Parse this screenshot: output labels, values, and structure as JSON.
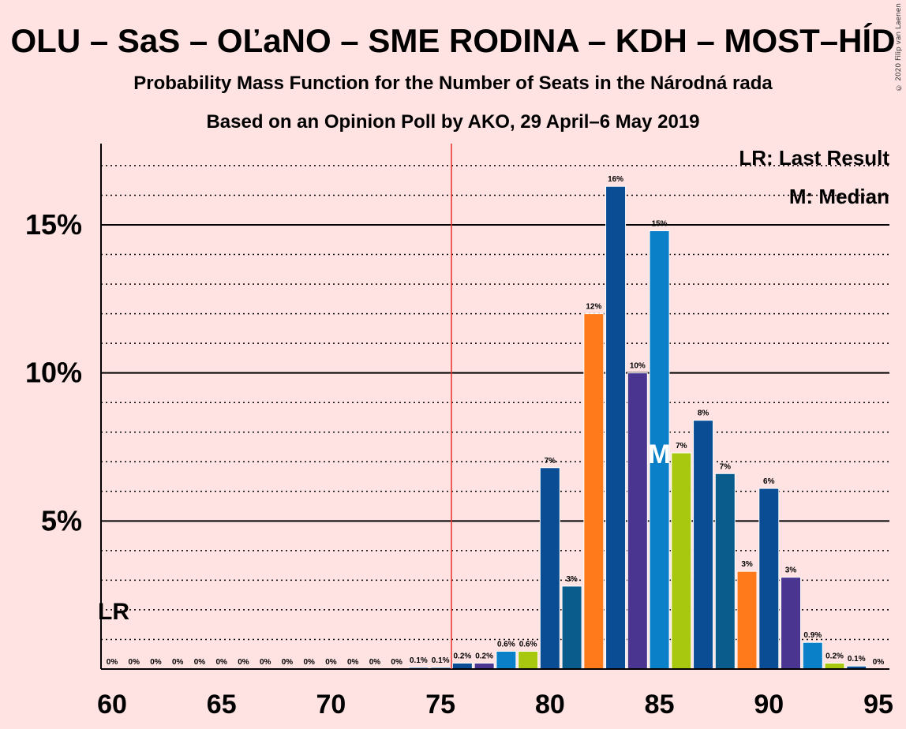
{
  "title": "OLU – SaS – OĽaNO – SME RODINA – KDH – MOST–HÍD",
  "subtitle1": "Probability Mass Function for the Number of Seats in the Národná rada",
  "subtitle2": "Based on an Opinion Poll by AKO, 29 April–6 May 2019",
  "copyright": "© 2020 Filip van Laenen",
  "legend": {
    "lr": "LR: Last Result",
    "m": "M: Median"
  },
  "lr_mark": "LR",
  "median_mark": "M",
  "chart_data": {
    "type": "bar",
    "x": [
      60,
      61,
      62,
      63,
      64,
      65,
      66,
      67,
      68,
      69,
      70,
      71,
      72,
      73,
      74,
      75,
      76,
      77,
      78,
      79,
      80,
      81,
      82,
      83,
      84,
      85,
      86,
      87,
      88,
      89,
      90,
      91,
      92,
      93,
      94,
      95
    ],
    "values": [
      0,
      0,
      0,
      0,
      0,
      0,
      0,
      0,
      0,
      0,
      0,
      0,
      0,
      0,
      0.05,
      0.05,
      0.2,
      0.2,
      0.6,
      0.6,
      6.8,
      2.8,
      12.0,
      16.3,
      10.0,
      14.8,
      7.3,
      8.4,
      6.6,
      3.3,
      6.1,
      3.1,
      0.9,
      0.2,
      0.1,
      0
    ],
    "labels": [
      "0%",
      "0%",
      "0%",
      "0%",
      "0%",
      "0%",
      "0%",
      "0%",
      "0%",
      "0%",
      "0%",
      "0%",
      "0%",
      "0%",
      "0.1%",
      "0.1%",
      "0.2%",
      "0.2%",
      "0.6%",
      "0.6%",
      "7%",
      "3%",
      "12%",
      "16%",
      "10%",
      "15%",
      "7%",
      "8%",
      "7%",
      "3%",
      "6%",
      "3%",
      "0.9%",
      "0.2%",
      "0.1%",
      "0%"
    ],
    "colors": [
      "#0A4D94",
      "#0A4D94",
      "#0A4D94",
      "#0A4D94",
      "#0A4D94",
      "#0A4D94",
      "#0A4D94",
      "#0A4D94",
      "#0A4D94",
      "#0A4D94",
      "#0A4D94",
      "#0A4D94",
      "#0A4D94",
      "#0A4D94",
      "#0A4D94",
      "#0A4D94",
      "#0A4D94",
      "#4A3590",
      "#0A80C8",
      "#A8C810",
      "#0A4D94",
      "#0A5C8C",
      "#FF7A1A",
      "#0A4D94",
      "#4A3590",
      "#0A80C8",
      "#A8C810",
      "#0A4D94",
      "#0A5C8C",
      "#FF7A1A",
      "#0A4D94",
      "#4A3590",
      "#0A80C8",
      "#A8C810",
      "#0A4D94",
      "#0A4D94"
    ],
    "x_ticks": [
      60,
      65,
      70,
      75,
      80,
      85,
      90,
      95
    ],
    "x_tick_labels": [
      "60",
      "65",
      "70",
      "75",
      "80",
      "85",
      "90",
      "95"
    ],
    "y_ticks": [
      5,
      10,
      15
    ],
    "y_tick_labels": [
      "5%",
      "10%",
      "15%"
    ],
    "ylim": [
      0,
      17.7
    ],
    "majority_line": 75.5,
    "majority_color": "#E8302A",
    "last_result": 60,
    "median": 85,
    "legend_position": "top-right",
    "grid": true
  }
}
